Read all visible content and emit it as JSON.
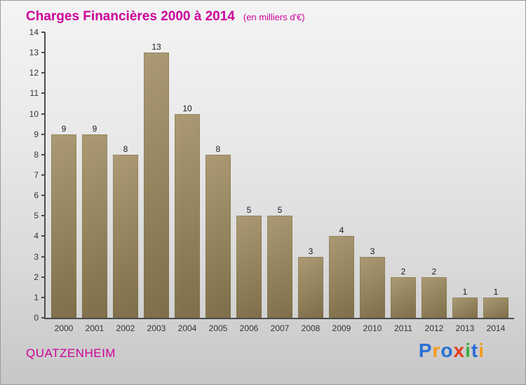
{
  "header": {
    "title": "Charges Financières 2000 à 2014",
    "subtitle": "(en milliers d'€)"
  },
  "chart_data": {
    "type": "bar",
    "title": "Charges Financières 2000 à 2014",
    "subtitle": "(en milliers d'€)",
    "categories": [
      "2000",
      "2001",
      "2002",
      "2003",
      "2004",
      "2005",
      "2006",
      "2007",
      "2008",
      "2009",
      "2010",
      "2011",
      "2012",
      "2013",
      "2014"
    ],
    "values": [
      9,
      9,
      8,
      13,
      10,
      8,
      5,
      5,
      3,
      4,
      3,
      2,
      2,
      1,
      1
    ],
    "xlabel": "",
    "ylabel": "",
    "ylim": [
      0,
      14
    ],
    "yticks": [
      0,
      1,
      2,
      3,
      4,
      5,
      6,
      7,
      8,
      9,
      10,
      11,
      12,
      13,
      14
    ],
    "grid": false,
    "legend": false,
    "bar_color": "#95855e"
  },
  "footer": {
    "company": "QUATZENHEIM",
    "logo_text": "Proxiti",
    "logo_letters": [
      {
        "char": "P",
        "color": "#2b6fd4"
      },
      {
        "char": "r",
        "color": "#f59a1b"
      },
      {
        "char": "o",
        "color": "#2b6fd4"
      },
      {
        "char": "x",
        "color": "#e43a1e"
      },
      {
        "char": "i",
        "color": "#3aae3a"
      },
      {
        "char": "t",
        "color": "#2b6fd4"
      },
      {
        "char": "i",
        "color": "#f59a1b"
      }
    ]
  },
  "colors": {
    "accent_magenta": "#cc0099",
    "axis": "#4d4d4d",
    "bar": "#95855e",
    "background_top": "#f4f4f4",
    "background_bottom": "#c7c7c7"
  }
}
